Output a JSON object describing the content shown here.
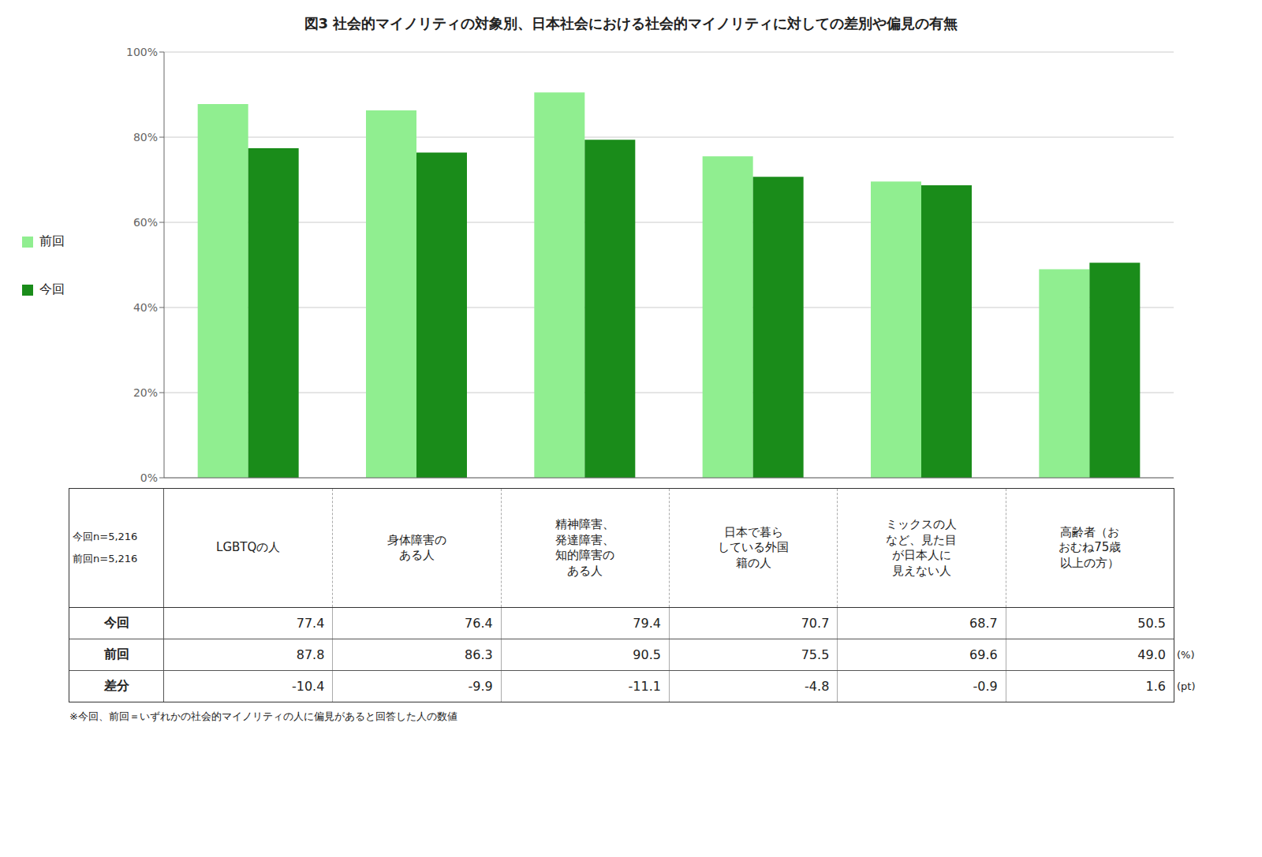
{
  "chart_data": {
    "type": "bar",
    "title": "図3  社会的マイノリティの対象別、日本社会における社会的マイノリティに対しての差別や偏見の有無",
    "categories": [
      "LGBTQの人",
      "身体障害の\nある人",
      "精神障害、\n発達障害、\n知的障害の\nある人",
      "日本で暮ら\nしている外国\n籍の人",
      "ミックスの人\nなど、見た目\nが日本人に\n見えない人",
      "高齢者（お\nおむね75歳\n以上の方）"
    ],
    "series": [
      {
        "name": "前回",
        "color": "#90EE90",
        "values": [
          87.8,
          86.3,
          90.5,
          75.5,
          69.6,
          49.0
        ],
        "value_labels": [
          "87.8",
          "86.3",
          "90.5",
          "75.5",
          "69.6",
          "49.0"
        ]
      },
      {
        "name": "今回",
        "color": "#1a8c1a",
        "values": [
          77.4,
          76.4,
          79.4,
          70.7,
          68.7,
          50.5
        ],
        "value_labels": [
          "77.4",
          "76.4",
          "79.4",
          "70.7",
          "68.7",
          "50.5"
        ]
      }
    ],
    "diff": {
      "name": "差分",
      "values": [
        -10.4,
        -9.9,
        -11.1,
        -4.8,
        -0.9,
        1.6
      ],
      "value_labels": [
        "-10.4",
        "-9.9",
        "-11.1",
        "-4.8",
        "-0.9",
        "1.6"
      ]
    },
    "annotations": [
      "今回n=5,216",
      "前回n=5,216",
      "(%)",
      "(pt)",
      "※今回、前回＝いずれかの社会的マイノリティの人に偏見があると回答した人の数値"
    ],
    "ylim": [
      0,
      100
    ],
    "yticks": [
      {
        "value": 0,
        "label": "0%"
      },
      {
        "value": 20,
        "label": "20%"
      },
      {
        "value": 40,
        "label": "40%"
      },
      {
        "value": 60,
        "label": "60%"
      },
      {
        "value": 80,
        "label": "80%"
      },
      {
        "value": 100,
        "label": "100%"
      }
    ],
    "grid": true,
    "legend": "left",
    "tick_labels": "y"
  }
}
